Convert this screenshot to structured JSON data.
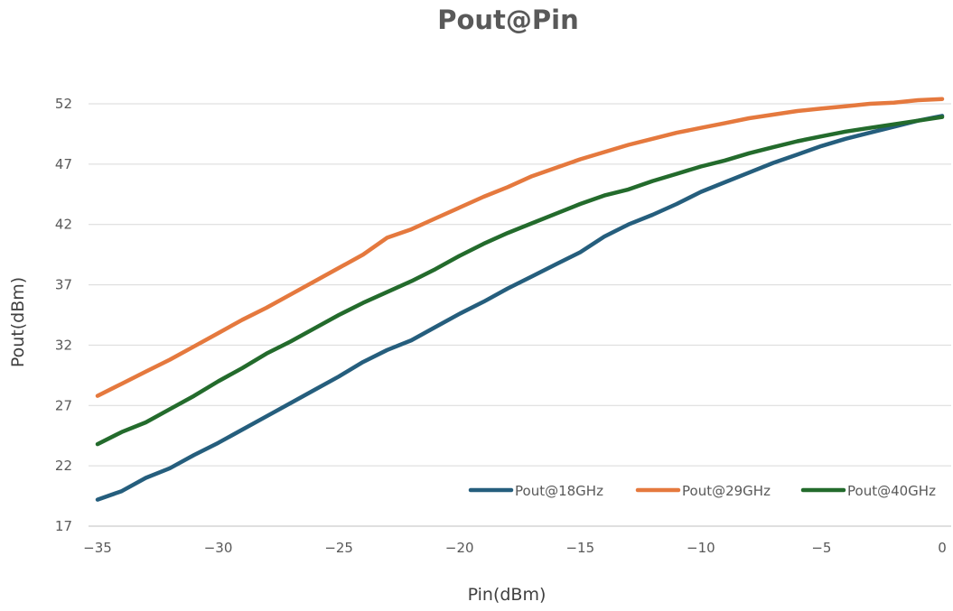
{
  "chart_data": {
    "type": "line",
    "title": "Pout@Pin",
    "xlabel": "Pin(dBm)",
    "ylabel": "Pout(dBm)",
    "xlim": [
      -35,
      0
    ],
    "ylim": [
      17,
      52
    ],
    "xticks": [
      -35,
      -30,
      -25,
      -20,
      -15,
      -10,
      -5,
      0
    ],
    "yticks": [
      17,
      22,
      27,
      32,
      37,
      42,
      47,
      52
    ],
    "xtick_labels": [
      "−35",
      "−30",
      "−25",
      "−20",
      "−15",
      "−10",
      "−5",
      "0"
    ],
    "grid": "horizontal",
    "legend_position": "bottom-right",
    "x": [
      -35,
      -34,
      -33,
      -32,
      -31,
      -30,
      -29,
      -28,
      -27,
      -26,
      -25,
      -24,
      -23,
      -22,
      -21,
      -20,
      -19,
      -18,
      -17,
      -16,
      -15,
      -14,
      -13,
      -12,
      -11,
      -10,
      -9,
      -8,
      -7,
      -6,
      -5,
      -4,
      -3,
      -2,
      -1,
      0
    ],
    "series": [
      {
        "name": "Pout@18GHz",
        "color": "#255E7D",
        "values": [
          19.2,
          19.9,
          21.0,
          21.8,
          22.9,
          23.9,
          25.0,
          26.1,
          27.2,
          28.3,
          29.4,
          30.6,
          31.6,
          32.4,
          33.5,
          34.6,
          35.6,
          36.7,
          37.7,
          38.7,
          39.7,
          41.0,
          42.0,
          42.8,
          43.7,
          44.7,
          45.5,
          46.3,
          47.1,
          47.8,
          48.5,
          49.1,
          49.6,
          50.1,
          50.6,
          51.0
        ]
      },
      {
        "name": "Pout@29GHz",
        "color": "#E5793E",
        "values": [
          27.8,
          28.8,
          29.8,
          30.8,
          31.9,
          33.0,
          34.1,
          35.1,
          36.2,
          37.3,
          38.4,
          39.5,
          40.9,
          41.6,
          42.5,
          43.4,
          44.3,
          45.1,
          46.0,
          46.7,
          47.4,
          48.0,
          48.6,
          49.1,
          49.6,
          50.0,
          50.4,
          50.8,
          51.1,
          51.4,
          51.6,
          51.8,
          52.0,
          52.1,
          52.3,
          52.4
        ]
      },
      {
        "name": "Pout@40GHz",
        "color": "#236B2C",
        "values": [
          23.8,
          24.8,
          25.6,
          26.7,
          27.8,
          29.0,
          30.1,
          31.3,
          32.3,
          33.4,
          34.5,
          35.5,
          36.4,
          37.3,
          38.3,
          39.4,
          40.4,
          41.3,
          42.1,
          42.9,
          43.7,
          44.4,
          44.9,
          45.6,
          46.2,
          46.8,
          47.3,
          47.9,
          48.4,
          48.9,
          49.3,
          49.7,
          50.0,
          50.3,
          50.6,
          50.9
        ]
      }
    ]
  }
}
